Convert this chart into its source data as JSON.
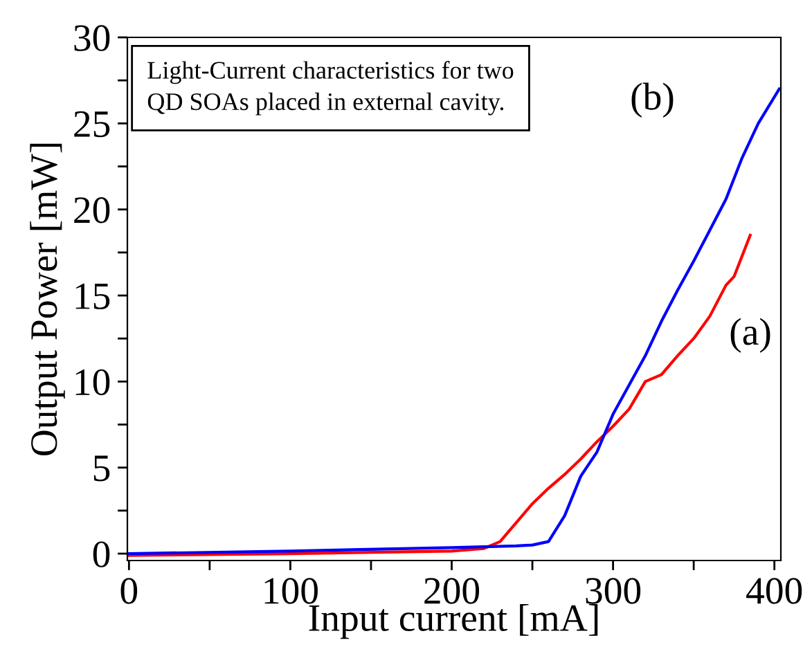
{
  "chart_data": {
    "type": "line",
    "xlabel": "Input current [mA]",
    "ylabel": "Output Power [mW]",
    "annotations": [
      "Light-Current characteristics for two\nQD SOAs placed in external cavity."
    ],
    "series": [
      {
        "name": "(a)",
        "color": "#ff0000",
        "x": [
          0,
          100,
          200,
          220,
          230,
          240,
          250,
          260,
          270,
          280,
          290,
          300,
          310,
          320,
          330,
          340,
          350,
          360,
          370,
          375,
          385
        ],
        "values": [
          -0.1,
          0.0,
          0.15,
          0.3,
          0.7,
          1.8,
          2.9,
          3.8,
          4.6,
          5.5,
          6.5,
          7.4,
          8.4,
          10.0,
          10.4,
          11.5,
          12.5,
          13.8,
          15.6,
          16.1,
          18.5
        ]
      },
      {
        "name": "(b)",
        "color": "#0000ff",
        "x": [
          0,
          100,
          200,
          240,
          250,
          260,
          270,
          280,
          290,
          300,
          310,
          320,
          330,
          340,
          350,
          360,
          370,
          380,
          390,
          403
        ],
        "values": [
          0,
          0.15,
          0.35,
          0.45,
          0.5,
          0.7,
          2.2,
          4.5,
          5.9,
          8.1,
          9.8,
          11.5,
          13.5,
          15.3,
          17.0,
          18.8,
          20.6,
          23.0,
          25.0,
          27.0
        ]
      }
    ],
    "xlim": [
      -1,
      404
    ],
    "ylim": [
      -0.4,
      30
    ],
    "xticks": [
      0,
      {
        "value": 50,
        "label": null
      },
      100,
      {
        "value": 150,
        "label": null
      },
      200,
      {
        "value": 250,
        "label": null
      },
      300,
      {
        "value": 350,
        "label": null
      },
      400
    ],
    "yticks": [
      0,
      {
        "value": 2.5,
        "label": null
      },
      5,
      {
        "value": 7.5,
        "label": null
      },
      10,
      {
        "value": 12.5,
        "label": null
      },
      15,
      {
        "value": 17.5,
        "label": null
      },
      20,
      {
        "value": 22.5,
        "label": null
      },
      25,
      {
        "value": 27.5,
        "label": null
      },
      30
    ],
    "grid": false,
    "legend": false,
    "marker": "none",
    "line_style": "solid"
  }
}
